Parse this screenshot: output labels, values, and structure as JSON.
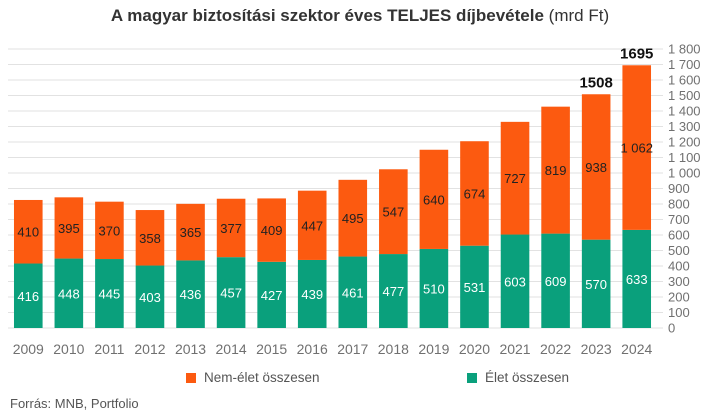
{
  "title": {
    "main": "A magyar biztosítási szektor éves TELJES díjbevétele",
    "unit": "(mrd Ft)"
  },
  "source": "Forrás: MNB, Portfolio",
  "colors": {
    "elet": "#0aa07c",
    "nem_elet": "#fc5a10",
    "grid": "#e2e2e2",
    "axis_text": "#707070"
  },
  "chart_data": {
    "type": "bar",
    "stacked": true,
    "categories": [
      "2009",
      "2010",
      "2011",
      "2012",
      "2013",
      "2014",
      "2015",
      "2016",
      "2017",
      "2018",
      "2019",
      "2020",
      "2021",
      "2022",
      "2023",
      "2024"
    ],
    "series": [
      {
        "name": "Élet összesen",
        "values": [
          416,
          448,
          445,
          403,
          436,
          457,
          427,
          439,
          461,
          477,
          510,
          531,
          603,
          609,
          570,
          633
        ],
        "labels": [
          "416",
          "448",
          "445",
          "403",
          "436",
          "457",
          "427",
          "439",
          "461",
          "477",
          "510",
          "531",
          "603",
          "609",
          "570",
          "633"
        ]
      },
      {
        "name": "Nem-élet összesen",
        "values": [
          410,
          395,
          370,
          358,
          365,
          377,
          409,
          447,
          495,
          547,
          640,
          674,
          727,
          819,
          938,
          1062
        ],
        "labels": [
          "410",
          "395",
          "370",
          "358",
          "365",
          "377",
          "409",
          "447",
          "495",
          "547",
          "640",
          "674",
          "727",
          "819",
          "938",
          "1 062"
        ]
      }
    ],
    "totals": [
      {
        "category": "2023",
        "label": "1508"
      },
      {
        "category": "2024",
        "label": "1695"
      }
    ],
    "yaxis": {
      "position": "right",
      "ylim": [
        0,
        1800
      ],
      "ticks": [
        0,
        100,
        200,
        300,
        400,
        500,
        600,
        700,
        800,
        900,
        1000,
        1100,
        1200,
        1300,
        1400,
        1500,
        1600,
        1700,
        1800
      ],
      "tick_labels": [
        "0",
        "100",
        "200",
        "300",
        "400",
        "500",
        "600",
        "700",
        "800",
        "900",
        "1 000",
        "1 100",
        "1 200",
        "1 300",
        "1 400",
        "1 500",
        "1 600",
        "1 700",
        "1 800"
      ]
    },
    "grid": true,
    "legend_position": "bottom"
  }
}
